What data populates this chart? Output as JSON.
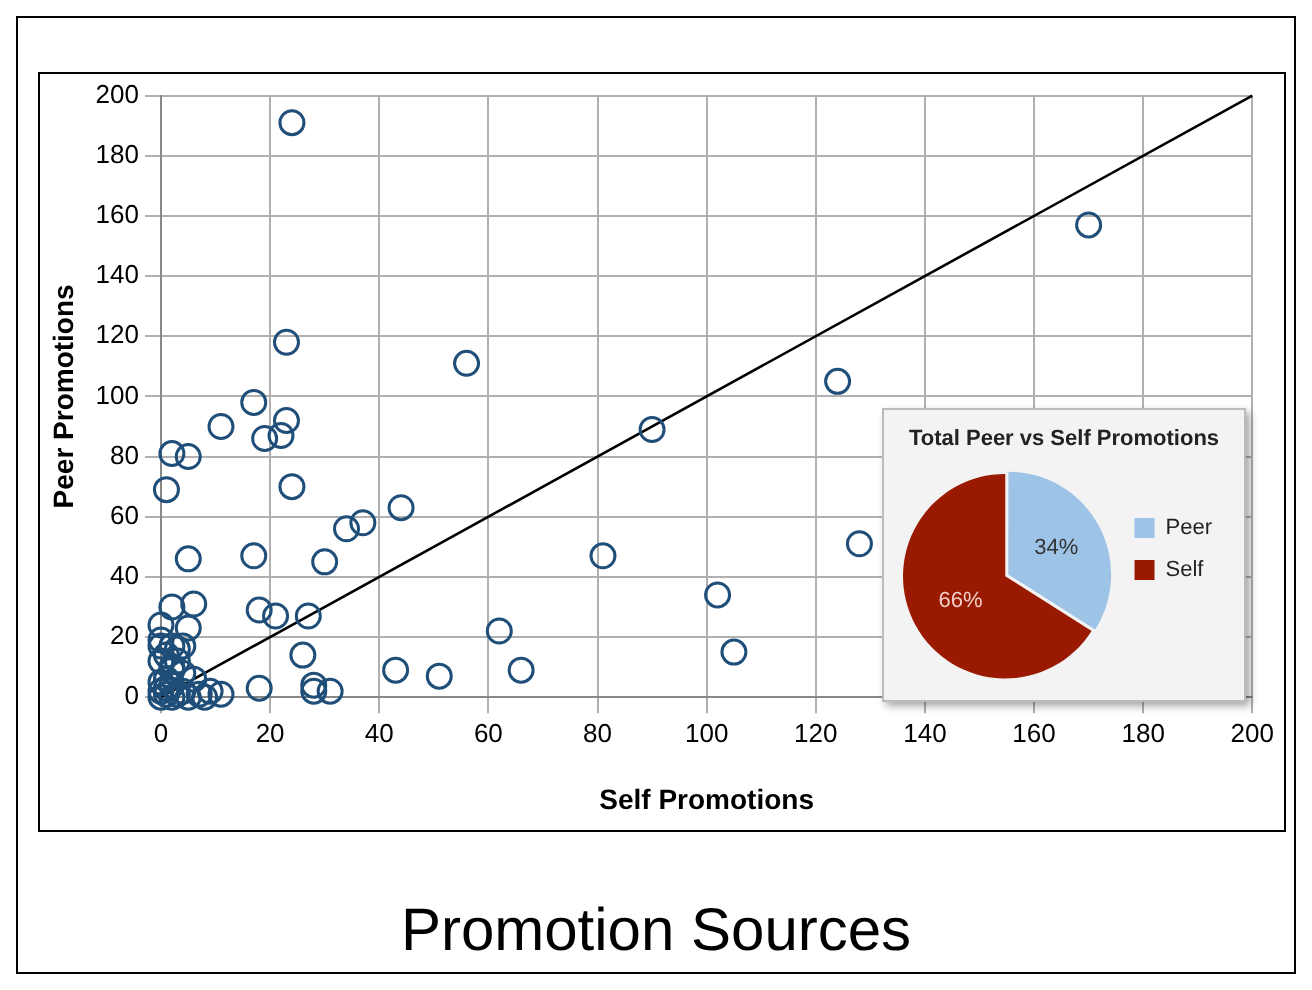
{
  "chart_data": [
    {
      "type": "scatter",
      "title": "Promotion Sources",
      "xlabel": "Self Promotions",
      "ylabel": "Peer Promotions",
      "xlim": [
        0,
        200
      ],
      "ylim": [
        0,
        200
      ],
      "xticks": [
        0,
        20,
        40,
        60,
        80,
        100,
        120,
        140,
        160,
        180,
        200
      ],
      "yticks": [
        0,
        20,
        40,
        60,
        80,
        100,
        120,
        140,
        160,
        180,
        200
      ],
      "grid": true,
      "legend": false,
      "marker": "circle",
      "series": [
        {
          "type": "scatter",
          "color": "#1f4e79",
          "x": [
            24,
            23,
            56,
            17,
            23,
            11,
            19,
            22,
            90,
            2,
            5,
            1,
            24,
            44,
            34,
            37,
            5,
            17,
            30,
            81,
            2,
            6,
            18,
            21,
            27,
            0,
            5,
            62,
            0,
            0,
            4,
            2,
            0,
            26,
            2,
            43,
            66,
            51,
            6,
            18,
            28,
            28,
            31,
            11,
            9,
            170,
            124,
            128,
            102,
            105,
            0,
            1,
            0,
            1,
            2,
            3,
            0,
            1,
            2,
            4,
            5,
            7,
            8,
            2,
            3,
            1,
            3,
            4
          ],
          "values": [
            191,
            118,
            111,
            98,
            92,
            90,
            86,
            87,
            89,
            81,
            80,
            69,
            70,
            63,
            56,
            58,
            46,
            47,
            45,
            47,
            30,
            31,
            29,
            27,
            27,
            24,
            23,
            22,
            19,
            17,
            17,
            17,
            12,
            14,
            9,
            9,
            9,
            7,
            6,
            3,
            4,
            2,
            2,
            1,
            2,
            157,
            105,
            51,
            34,
            15,
            0,
            1,
            2,
            3,
            0,
            1,
            5,
            6,
            4,
            2,
            0,
            1,
            0,
            10,
            12,
            14,
            16,
            8
          ]
        },
        {
          "type": "line",
          "color": "#000000",
          "marker": "none",
          "x": [
            0,
            200
          ],
          "values": [
            0,
            200
          ]
        }
      ]
    },
    {
      "type": "pie",
      "title": "Total Peer vs Self Promotions",
      "categories": [
        "Peer",
        "Self"
      ],
      "values": [
        34,
        66
      ],
      "colors": [
        "#9dc3e6",
        "#991a00"
      ],
      "value_labels": [
        "34%",
        "66%"
      ],
      "legend": "right"
    }
  ]
}
